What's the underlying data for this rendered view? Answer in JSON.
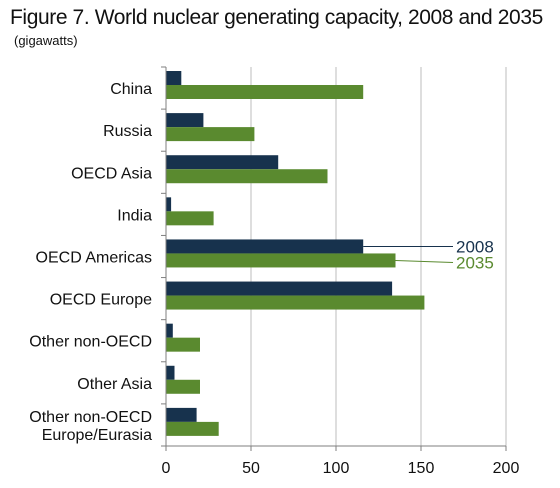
{
  "title": "Figure 7. World nuclear generating capacity, 2008 and 2035",
  "subtitle": "(gigawatts)",
  "chart_data": {
    "type": "bar",
    "orientation": "horizontal",
    "categories": [
      "China",
      "Russia",
      "OECD Asia",
      "India",
      "OECD Americas",
      "OECD Europe",
      "Other non-OECD",
      "Other Asia",
      "Other non-OECD Europe/Eurasia"
    ],
    "category_lines": [
      [
        "China"
      ],
      [
        "Russia"
      ],
      [
        "OECD Asia"
      ],
      [
        "India"
      ],
      [
        "OECD Americas"
      ],
      [
        "OECD Europe"
      ],
      [
        "Other non-OECD"
      ],
      [
        "Other Asia"
      ],
      [
        "Other non-OECD",
        "Europe/Eurasia"
      ]
    ],
    "series": [
      {
        "name": "2008",
        "color": "#17324d",
        "values": [
          9,
          22,
          66,
          3,
          116,
          133,
          4,
          5,
          18
        ]
      },
      {
        "name": "2035",
        "color": "#5a8a2f",
        "values": [
          116,
          52,
          95,
          28,
          135,
          152,
          20,
          20,
          31
        ]
      }
    ],
    "xlim": [
      0,
      200
    ],
    "xticks": [
      0,
      50,
      100,
      150,
      200
    ],
    "grid": true,
    "legend": "inline labels at right of OECD Americas bars"
  }
}
